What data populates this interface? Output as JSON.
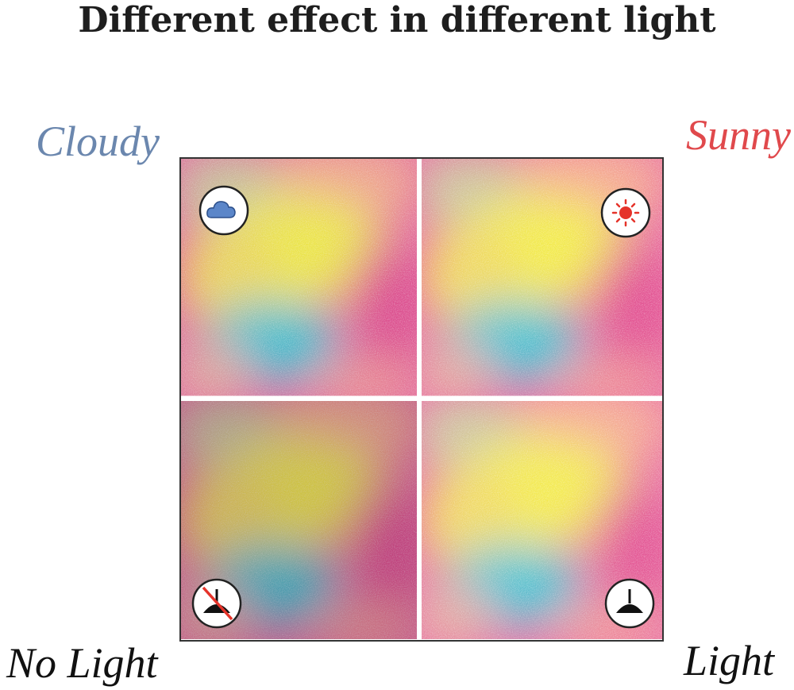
{
  "title": "Different effect in different light",
  "labels": {
    "top_left": "Cloudy",
    "top_right": "Sunny",
    "bottom_left": "No Light",
    "bottom_right": "Light"
  }
}
